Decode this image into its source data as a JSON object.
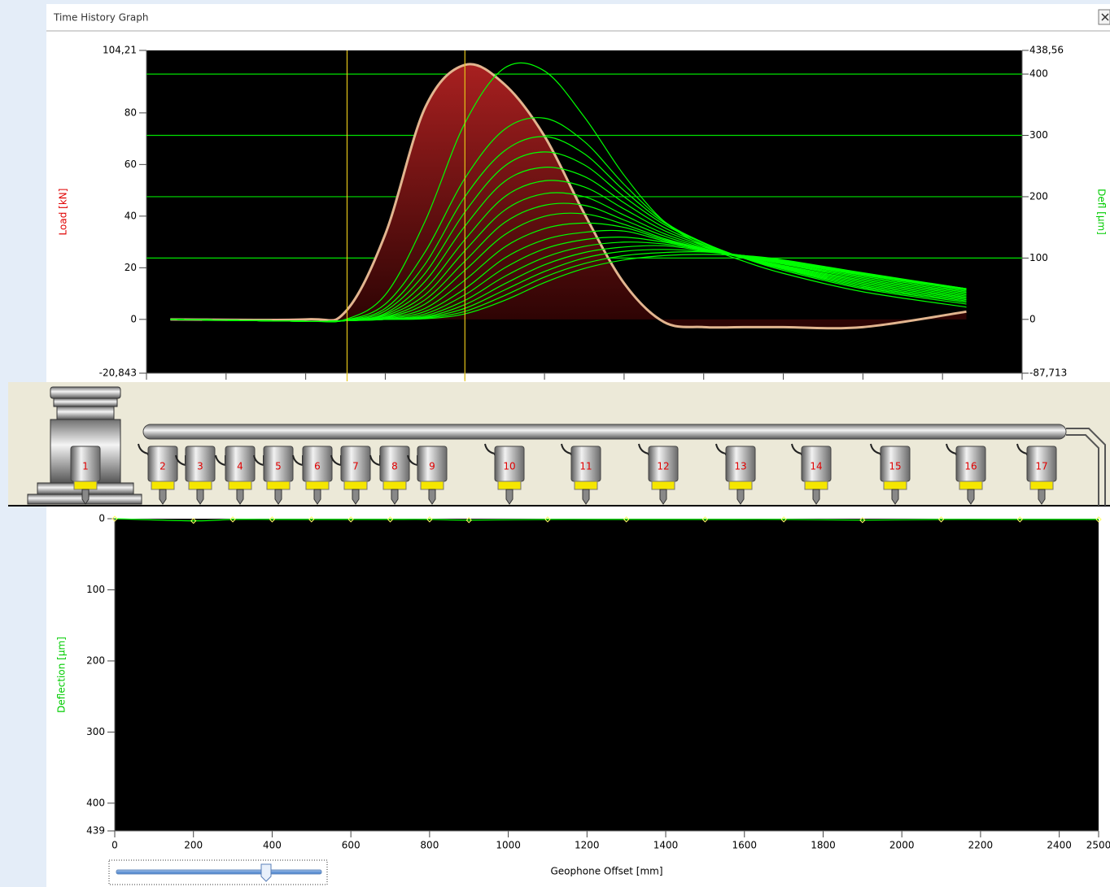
{
  "window": {
    "title": "Time History Graph"
  },
  "schematic": {
    "geophones": [
      "1",
      "2",
      "3",
      "4",
      "5",
      "6",
      "7",
      "8",
      "9",
      "10",
      "11",
      "12",
      "13",
      "14",
      "15",
      "16",
      "17"
    ]
  },
  "chart_data": [
    {
      "type": "line",
      "ylabel": "Load [kN]",
      "y2label": "Defl [µm]",
      "x": [
        0.3,
        2.0,
        2.5,
        3.0,
        3.5,
        4.0,
        4.5,
        5.0,
        5.5,
        6.0,
        6.5,
        7.0,
        7.5,
        8.0,
        9.0,
        10.3
      ],
      "xlim": [
        0,
        11
      ],
      "xticks": [
        0,
        1,
        2,
        3,
        4,
        5,
        6,
        7,
        8,
        9,
        10,
        11
      ],
      "show_xtick_labels": false,
      "ylim": [
        -20.843,
        104.21
      ],
      "yticks": [
        {
          "value": 104.21,
          "label": "104,21"
        },
        80,
        60,
        40,
        20,
        0,
        {
          "value": -20.843,
          "label": "-20,843"
        }
      ],
      "y2lim": [
        -87.713,
        438.56
      ],
      "y2ticks": [
        {
          "value": 438.56,
          "label": "438,56"
        },
        400,
        300,
        200,
        100,
        0,
        {
          "value": -87.713,
          "label": "-87,713"
        }
      ],
      "grid": "y2",
      "grid_color": "#00e000",
      "background": "#000000",
      "cursors": [
        2.52,
        4.0
      ],
      "cursor_color": "#e6c619",
      "series": [
        {
          "color": "#a31c1c",
          "fill": true,
          "outline": "#e2b58f",
          "values": [
            0,
            0,
            3,
            33,
            82,
            98.6,
            91,
            71,
            41,
            14,
            -1,
            -3,
            -3,
            -3,
            -3,
            3
          ]
        },
        {
          "color": "#00ff00",
          "axis": "y2",
          "values": [
            0,
            -3,
            0,
            40,
            160,
            320,
            410,
            405,
            330,
            235,
            160,
            120,
            95,
            75,
            45,
            20
          ]
        },
        {
          "color": "#00ff00",
          "axis": "y2",
          "values": [
            0,
            -3,
            -1,
            25,
            110,
            230,
            310,
            328,
            290,
            220,
            160,
            125,
            100,
            80,
            50,
            25
          ]
        },
        {
          "color": "#00ff00",
          "axis": "y2",
          "values": [
            0,
            -3,
            -1,
            18,
            90,
            200,
            275,
            298,
            270,
            210,
            158,
            125,
            100,
            82,
            52,
            28
          ]
        },
        {
          "color": "#00ff00",
          "axis": "y2",
          "values": [
            0,
            -3,
            -2,
            14,
            75,
            175,
            250,
            273,
            252,
            200,
            155,
            124,
            100,
            83,
            54,
            30
          ]
        },
        {
          "color": "#00ff00",
          "axis": "y2",
          "values": [
            0,
            -3,
            -2,
            10,
            62,
            152,
            225,
            248,
            233,
            190,
            150,
            122,
            100,
            84,
            56,
            32
          ]
        },
        {
          "color": "#00ff00",
          "axis": "y2",
          "values": [
            0,
            -3,
            -2,
            8,
            50,
            130,
            200,
            226,
            216,
            180,
            145,
            120,
            100,
            85,
            58,
            34
          ]
        },
        {
          "color": "#00ff00",
          "axis": "y2",
          "values": [
            0,
            -3,
            -2,
            6,
            40,
            112,
            178,
            205,
            200,
            170,
            140,
            118,
            100,
            86,
            60,
            36
          ]
        },
        {
          "color": "#00ff00",
          "axis": "y2",
          "values": [
            0,
            -3,
            -2,
            4,
            32,
            95,
            158,
            186,
            186,
            162,
            136,
            116,
            100,
            87,
            62,
            38
          ]
        },
        {
          "color": "#00ff00",
          "axis": "y2",
          "values": [
            0,
            -3,
            -2,
            3,
            25,
            80,
            138,
            168,
            172,
            155,
            132,
            115,
            101,
            88,
            64,
            40
          ]
        },
        {
          "color": "#00ff00",
          "axis": "y2",
          "values": [
            0,
            -3,
            -2,
            2,
            18,
            64,
            118,
            148,
            157,
            150,
            130,
            115,
            102,
            90,
            66,
            42
          ]
        },
        {
          "color": "#00ff00",
          "axis": "y2",
          "values": [
            0,
            -3,
            -2,
            1,
            13,
            50,
            100,
            130,
            142,
            144,
            128,
            114,
            102,
            91,
            68,
            44
          ]
        },
        {
          "color": "#00ff00",
          "axis": "y2",
          "values": [
            0,
            -3,
            -2,
            0,
            9,
            40,
            84,
            115,
            130,
            134,
            126,
            114,
            103,
            92,
            70,
            46
          ]
        },
        {
          "color": "#00ff00",
          "axis": "y2",
          "values": [
            0,
            -3,
            -2,
            0,
            6,
            31,
            70,
            101,
            119,
            126,
            123,
            113,
            103,
            93,
            72,
            48
          ]
        },
        {
          "color": "#00ff00",
          "axis": "y2",
          "values": [
            0,
            -3,
            -2,
            0,
            4,
            24,
            58,
            89,
            109,
            118,
            120,
            112,
            104,
            94,
            73,
            49
          ]
        },
        {
          "color": "#00ff00",
          "axis": "y2",
          "values": [
            0,
            -3,
            -2,
            0,
            3,
            18,
            48,
            78,
            100,
            111,
            114,
            111,
            104,
            95,
            74,
            50
          ]
        },
        {
          "color": "#00ff00",
          "axis": "y2",
          "values": [
            0,
            -3,
            -2,
            0,
            2,
            13,
            39,
            69,
            91,
            104,
            109,
            110,
            104,
            96,
            75,
            50
          ]
        },
        {
          "color": "#00ff00",
          "axis": "y2",
          "values": [
            0,
            -3,
            -2,
            0,
            1,
            9,
            31,
            60,
            83,
            97,
            104,
            106,
            104,
            97,
            76,
            50
          ]
        }
      ]
    },
    {
      "type": "line",
      "xlabel": "Geophone Offset [mm]",
      "ylabel": "Deflection [µm]",
      "x": [
        0,
        200,
        300,
        400,
        500,
        600,
        700,
        800,
        900,
        1100,
        1300,
        1500,
        1700,
        1900,
        2100,
        2300,
        2500
      ],
      "xlim": [
        0,
        2500
      ],
      "xticks": [
        0,
        200,
        400,
        600,
        800,
        1000,
        1200,
        1400,
        1600,
        1800,
        2000,
        2200,
        2400,
        2500
      ],
      "show_xtick_labels": true,
      "ylim": [
        0,
        439
      ],
      "invert_y": true,
      "yticks": [
        0,
        100,
        200,
        300,
        400,
        439
      ],
      "background": "#000000",
      "series": [
        {
          "color": "#00ff00",
          "marker_color": "#ffff66",
          "values": [
            0,
            3,
            1,
            1,
            1,
            1,
            1,
            1,
            2,
            1,
            1,
            1,
            1,
            2,
            1,
            1,
            1
          ]
        }
      ]
    }
  ]
}
